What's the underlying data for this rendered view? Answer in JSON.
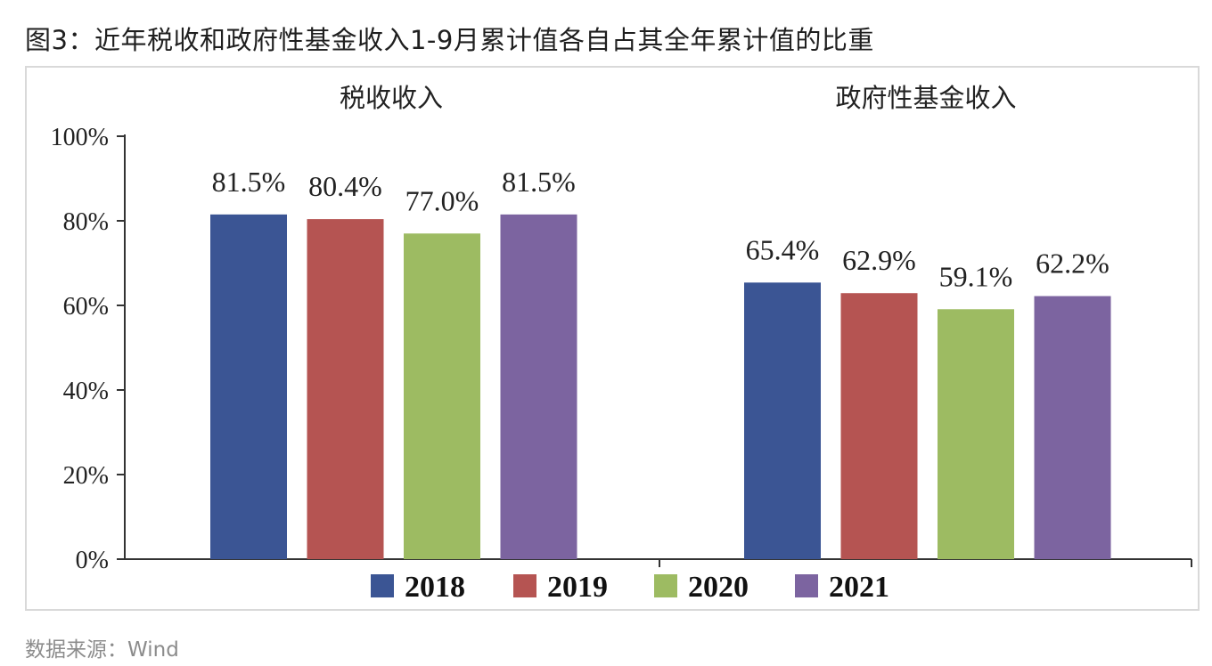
{
  "figure": {
    "title": "图3：近年税收和政府性基金收入1-9月累计值各自占其全年累计值的比重",
    "source": "数据来源：Wind"
  },
  "chart_data": {
    "type": "bar",
    "title": "",
    "xlabel": "",
    "ylabel": "",
    "ylim": [
      0,
      100
    ],
    "yticks": [
      "0%",
      "20%",
      "40%",
      "60%",
      "80%",
      "100%"
    ],
    "ytick_values": [
      0,
      20,
      40,
      60,
      80,
      100
    ],
    "categories": [
      "税收收入",
      "政府性基金收入"
    ],
    "series": [
      {
        "name": "2018",
        "values": [
          81.5,
          65.4
        ],
        "labels": [
          "81.5%",
          "65.4%"
        ],
        "color": "#3b5594"
      },
      {
        "name": "2019",
        "values": [
          80.4,
          62.9
        ],
        "labels": [
          "80.4%",
          "62.9%"
        ],
        "color": "#b55452"
      },
      {
        "name": "2020",
        "values": [
          77.0,
          59.1
        ],
        "labels": [
          "77.0%",
          "59.1%"
        ],
        "color": "#9dbb62"
      },
      {
        "name": "2021",
        "values": [
          81.5,
          62.2
        ],
        "labels": [
          "81.5%",
          "62.2%"
        ],
        "color": "#7c64a0"
      }
    ],
    "grid": false,
    "legend": "bottom",
    "category_label_position": "top"
  }
}
